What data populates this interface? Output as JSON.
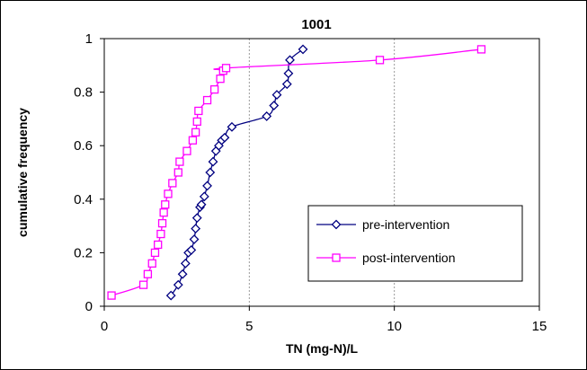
{
  "chart_data": {
    "type": "line",
    "title": "1001",
    "xlabel": "TN (mg-N)/L",
    "ylabel": "cumulative frequency",
    "xlim": [
      0,
      15
    ],
    "ylim": [
      0,
      1
    ],
    "xticks": [
      0,
      5,
      10,
      15
    ],
    "yticks": [
      0,
      0.2,
      0.4,
      0.6,
      0.8,
      1
    ],
    "xtick_labels": [
      "0",
      "5",
      "10",
      "15"
    ],
    "ytick_labels": [
      "0",
      "0.2",
      "0.4",
      "0.6",
      "0.8",
      "1"
    ],
    "grid": "x-major dashed",
    "legend_position": "bottom-right",
    "series": [
      {
        "name": "pre-intervention",
        "color": "#000080",
        "marker": "diamond",
        "x": [
          2.3,
          2.55,
          2.7,
          2.8,
          2.9,
          3.0,
          3.1,
          3.15,
          3.2,
          3.3,
          3.35,
          3.45,
          3.55,
          3.65,
          3.75,
          3.85,
          3.95,
          4.05,
          4.15,
          4.4,
          5.6,
          5.85,
          5.95,
          6.3,
          6.35,
          6.4,
          6.85
        ],
        "y": [
          0.04,
          0.08,
          0.12,
          0.16,
          0.2,
          0.21,
          0.25,
          0.29,
          0.33,
          0.37,
          0.38,
          0.41,
          0.45,
          0.5,
          0.54,
          0.58,
          0.6,
          0.62,
          0.63,
          0.67,
          0.71,
          0.75,
          0.79,
          0.83,
          0.87,
          0.92,
          0.96
        ]
      },
      {
        "name": "post-intervention",
        "color": "#ff00ff",
        "marker": "square",
        "x": [
          0.25,
          1.35,
          1.5,
          1.65,
          1.75,
          1.85,
          1.95,
          2.0,
          2.05,
          2.1,
          2.2,
          2.35,
          2.55,
          2.6,
          2.85,
          3.05,
          3.15,
          3.2,
          3.25,
          3.55,
          3.8,
          4.0,
          4.1,
          4.2,
          9.5,
          13.0
        ],
        "y": [
          0.04,
          0.08,
          0.12,
          0.16,
          0.2,
          0.23,
          0.27,
          0.31,
          0.35,
          0.38,
          0.42,
          0.46,
          0.5,
          0.54,
          0.58,
          0.62,
          0.65,
          0.69,
          0.73,
          0.77,
          0.81,
          0.85,
          0.88,
          0.89,
          0.92,
          0.96
        ]
      }
    ]
  }
}
